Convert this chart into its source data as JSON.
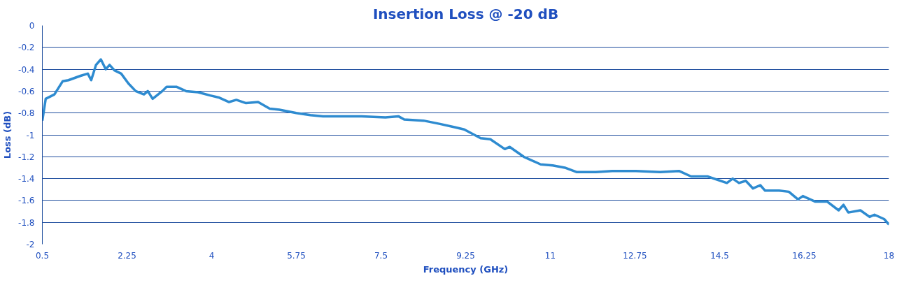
{
  "chart_data": {
    "type": "line",
    "title": "Insertion Loss @ -20 dB",
    "xlabel": "Frequency (GHz)",
    "ylabel": "Loss (dB)",
    "xlim": [
      0.5,
      18
    ],
    "xticks": [
      0.5,
      2.25,
      4,
      5.75,
      7.5,
      9.25,
      11,
      12.75,
      14.5,
      16.25,
      18
    ],
    "ylim": [
      -2,
      0
    ],
    "yticks": [
      0,
      -0.2,
      -0.4,
      -0.6,
      -0.8,
      -1,
      -1.2,
      -1.4,
      -1.6,
      -1.8,
      -2
    ],
    "grid": "y",
    "marker": "none",
    "line_style": "solid",
    "series": [
      {
        "color": "#2e8bd0",
        "x": [
          0.5,
          0.57,
          0.75,
          0.92,
          1.04,
          1.29,
          1.44,
          1.51,
          1.61,
          1.71,
          1.81,
          1.89,
          1.99,
          2.13,
          2.28,
          2.43,
          2.6,
          2.68,
          2.78,
          2.98,
          3.07,
          3.27,
          3.47,
          3.72,
          3.97,
          4.16,
          4.36,
          4.51,
          4.71,
          4.96,
          5.2,
          5.4,
          5.75,
          6.04,
          6.3,
          6.6,
          7.1,
          7.59,
          7.86,
          7.98,
          8.38,
          8.72,
          9.02,
          9.22,
          9.56,
          9.76,
          10.06,
          10.16,
          10.45,
          10.8,
          11.05,
          11.3,
          11.54,
          11.94,
          12.28,
          12.77,
          13.27,
          13.66,
          13.91,
          14.25,
          14.65,
          14.77,
          14.9,
          15.04,
          15.19,
          15.34,
          15.44,
          15.73,
          15.93,
          16.12,
          16.22,
          16.47,
          16.72,
          16.96,
          17.06,
          17.16,
          17.41,
          17.6,
          17.7,
          17.9,
          18.0
        ],
        "values": [
          -0.87,
          -0.67,
          -0.63,
          -0.51,
          -0.5,
          -0.46,
          -0.44,
          -0.5,
          -0.36,
          -0.31,
          -0.4,
          -0.36,
          -0.41,
          -0.44,
          -0.53,
          -0.6,
          -0.63,
          -0.6,
          -0.67,
          -0.6,
          -0.56,
          -0.56,
          -0.6,
          -0.61,
          -0.64,
          -0.66,
          -0.7,
          -0.68,
          -0.71,
          -0.7,
          -0.76,
          -0.77,
          -0.8,
          -0.82,
          -0.83,
          -0.83,
          -0.83,
          -0.84,
          -0.83,
          -0.86,
          -0.87,
          -0.9,
          -0.93,
          -0.95,
          -1.03,
          -1.04,
          -1.13,
          -1.11,
          -1.2,
          -1.27,
          -1.28,
          -1.3,
          -1.34,
          -1.34,
          -1.33,
          -1.33,
          -1.34,
          -1.33,
          -1.38,
          -1.38,
          -1.44,
          -1.4,
          -1.44,
          -1.42,
          -1.49,
          -1.46,
          -1.51,
          -1.51,
          -1.52,
          -1.59,
          -1.56,
          -1.61,
          -1.61,
          -1.69,
          -1.64,
          -1.71,
          -1.69,
          -1.75,
          -1.73,
          -1.77,
          -1.82
        ]
      }
    ]
  }
}
